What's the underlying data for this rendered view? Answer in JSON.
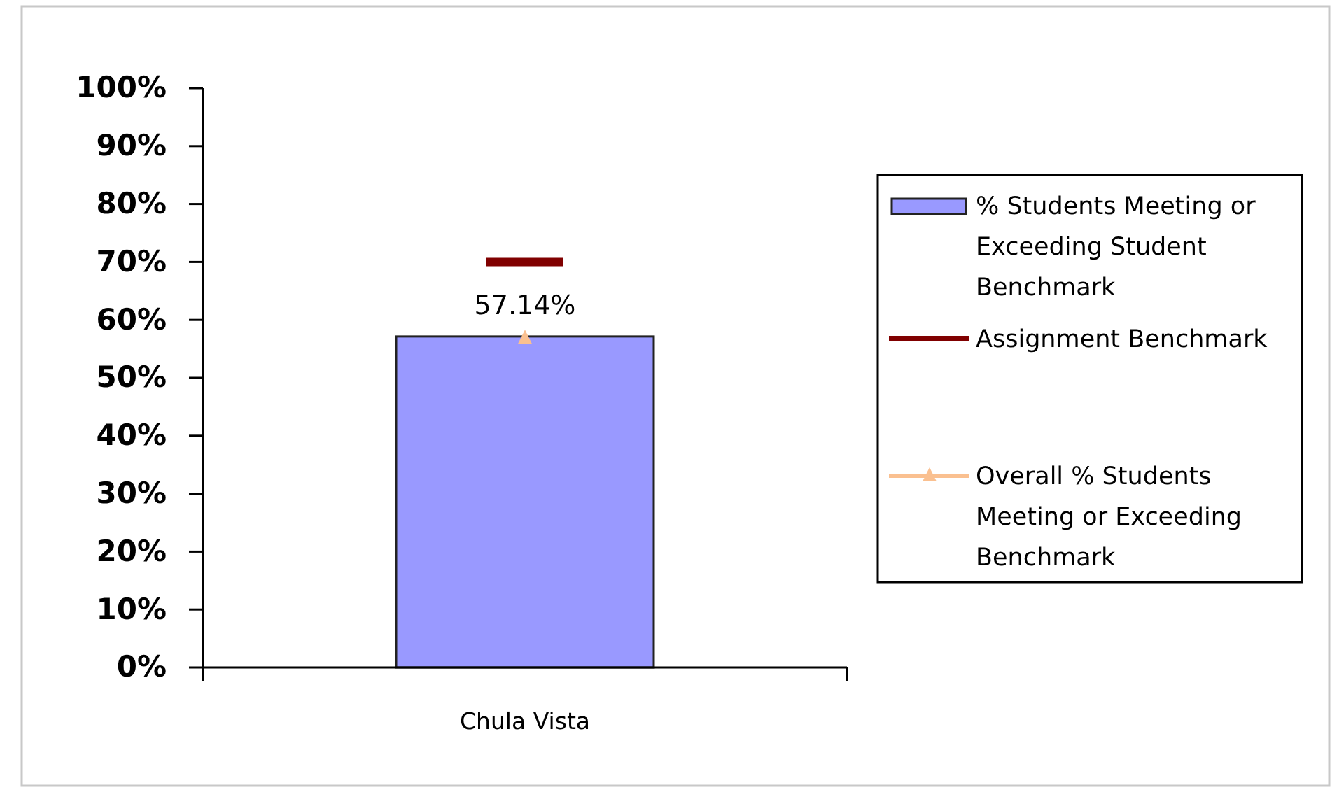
{
  "chart_data": {
    "type": "bar",
    "categories": [
      "Chula Vista"
    ],
    "series": [
      {
        "name": "% Students Meeting or Exceeding Student Benchmark",
        "color": "#9999ff",
        "values": [
          57.14
        ],
        "value_labels": [
          "57.14%"
        ]
      },
      {
        "name": "Overall % Students Meeting or Exceeding Benchmark",
        "type": "line",
        "color": "#fac090",
        "values": [
          57.1
        ],
        "marker": "triangle"
      }
    ],
    "ref_lines": [
      {
        "axis": "y",
        "value": 70,
        "label": "Assignment Benchmark",
        "color": "#800000"
      }
    ],
    "ylim": [
      0,
      100
    ],
    "yticks": [
      {
        "value": 0,
        "label": "0%"
      },
      {
        "value": 10,
        "label": "10%"
      },
      {
        "value": 20,
        "label": "20%"
      },
      {
        "value": 30,
        "label": "30%"
      },
      {
        "value": 40,
        "label": "40%"
      },
      {
        "value": 50,
        "label": "50%"
      },
      {
        "value": 60,
        "label": "60%"
      },
      {
        "value": 70,
        "label": "70%"
      },
      {
        "value": 80,
        "label": "80%"
      },
      {
        "value": 90,
        "label": "90%"
      },
      {
        "value": 100,
        "label": "100%"
      }
    ],
    "legend": "right"
  }
}
